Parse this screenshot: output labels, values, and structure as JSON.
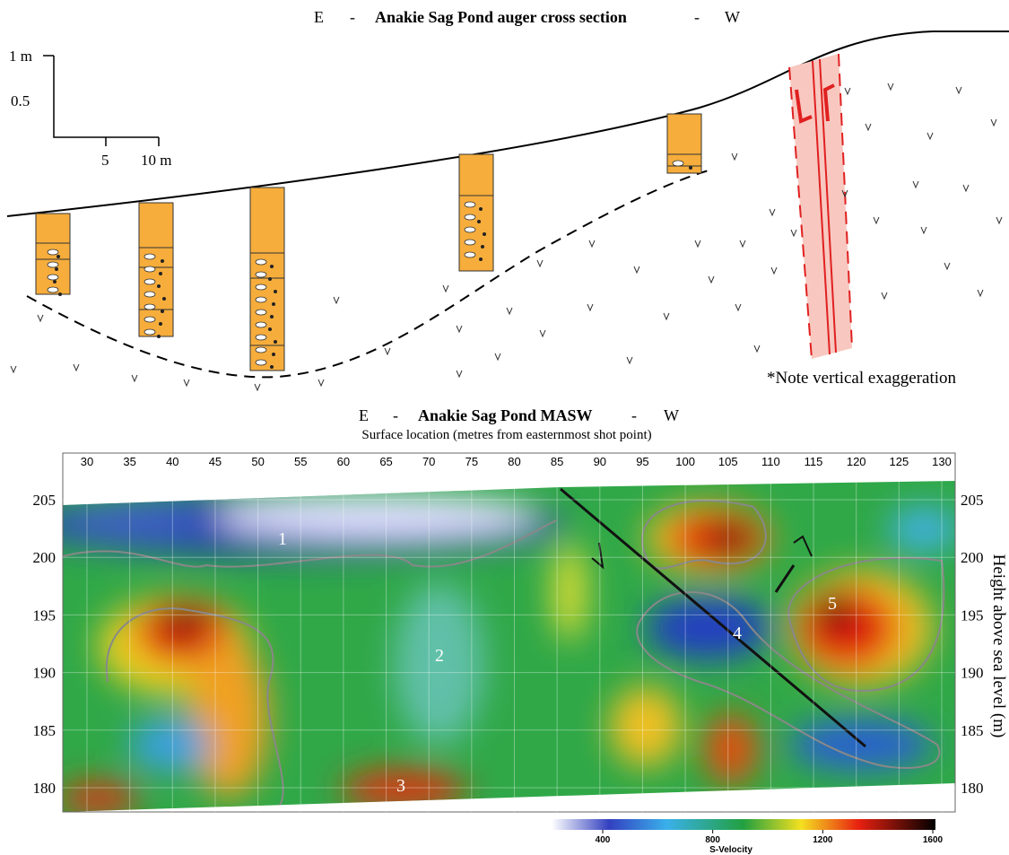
{
  "top_panel": {
    "title": {
      "left": "E",
      "sep1": "-",
      "main": "Anakie Sag Pond auger cross section",
      "sep2": "-",
      "right": "W"
    },
    "scale": {
      "y_labels": [
        "1 m",
        "0.5"
      ],
      "x_labels": [
        "5",
        "10 m"
      ]
    },
    "note": "*Note vertical exaggeration"
  },
  "bottom_panel": {
    "title": {
      "left": "E",
      "sep1": "-",
      "main": "Anakie Sag Pond MASW",
      "sep2": "-",
      "right": "W"
    },
    "subtitle": "Surface location (metres from easternmost shot point)",
    "x_ticks": [
      30,
      35,
      40,
      45,
      50,
      55,
      60,
      65,
      70,
      75,
      80,
      85,
      90,
      95,
      100,
      105,
      110,
      115,
      120,
      125,
      130
    ],
    "y_ticks": [
      180,
      185,
      190,
      195,
      200,
      205
    ],
    "y_axis_label": "Height above sea level (m)",
    "zone_labels": [
      "1",
      "2",
      "3",
      "4",
      "5"
    ],
    "colorbar": {
      "ticks": [
        400,
        800,
        1200,
        1600
      ],
      "label": "S-Velocity"
    }
  }
}
